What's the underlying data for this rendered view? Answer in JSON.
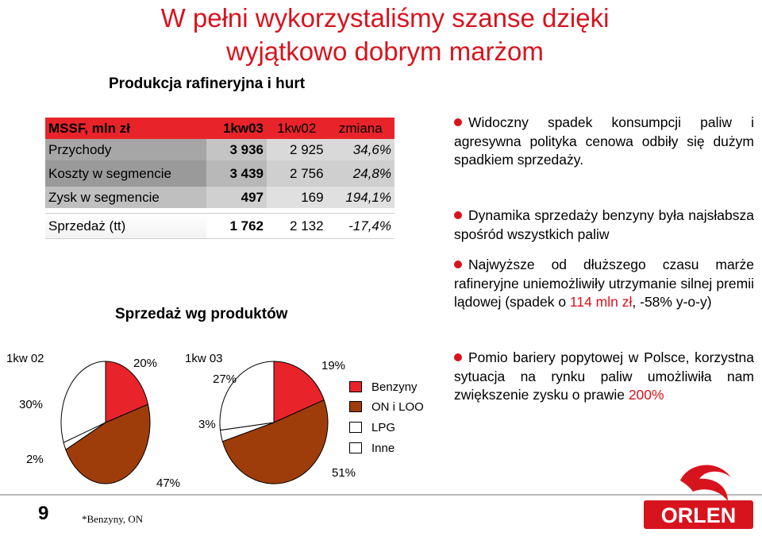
{
  "header": {
    "title": "W pełni wykorzystaliśmy szanse dzięki wyjątkowo dobrym marżom",
    "subtitle": "Produkcja rafineryjna i hurt"
  },
  "table": {
    "header": {
      "label": "MSSF, mln zł",
      "c1": "1kw03",
      "c2": "1kw02",
      "c3": "zmiana"
    },
    "rows": [
      {
        "label": "Przychody",
        "c1": "3 936",
        "c2": "2 925",
        "c3": "34,6%"
      },
      {
        "label": "Koszty w segmencie",
        "c1": "3 439",
        "c2": "2 756",
        "c3": "24,8%"
      },
      {
        "label": "Zysk w segmencie",
        "c1": "497",
        "c2": "169",
        "c3": "194,1%"
      },
      {
        "label": "Sprzedaż (tt)",
        "c1": "1 762",
        "c2": "2 132",
        "c3": "-17,4%"
      }
    ]
  },
  "sales": {
    "title": "Sprzedaż wg produktów",
    "legend": [
      {
        "label": "Benzyny",
        "color": "#e8242a"
      },
      {
        "label": "ON i LOO",
        "color": "#9e3d0a"
      },
      {
        "label": "LPG",
        "color": "#ffffff"
      },
      {
        "label": "Inne",
        "color": "#ffffff"
      }
    ]
  },
  "chart_data": [
    {
      "type": "pie",
      "title": "1kw 02",
      "categories": [
        "Benzyny",
        "ON i LOO",
        "LPG",
        "Inne"
      ],
      "values": [
        20,
        47,
        2,
        30
      ],
      "labels": [
        "20%",
        "47%",
        "2%",
        "30%"
      ]
    },
    {
      "type": "pie",
      "title": "1kw 03",
      "categories": [
        "Benzyny",
        "ON i LOO",
        "LPG",
        "Inne"
      ],
      "values": [
        19,
        51,
        3,
        27
      ],
      "labels": [
        "19%",
        "51%",
        "3%",
        "27%"
      ]
    }
  ],
  "bullets": [
    {
      "text": "Widoczny spadek konsumpcji paliw i agresywna polityka cenowa odbiły się dużym spadkiem sprzedaży."
    },
    {
      "text": "Dynamika sprzedaży benzyny była najsłabsza spośród wszystkich paliw"
    },
    {
      "pre": "Najwyższe od dłuższego czasu marże rafineryjne uniemożliwiły utrzymanie silnej premii lądowej (spadek o ",
      "highlight": "114 mln zł",
      "post": ", -58% y-o-y)"
    },
    {
      "pre": "Pomio bariery popytowej w Polsce, korzystna sytuacja na rynku paliw umożliwiła nam zwiększenie zysku o prawie ",
      "highlight": "200%",
      "post": ""
    }
  ],
  "footer": {
    "page_number": "9",
    "footnote": "*Benzyny, ON",
    "logo_text": "ORLEN",
    "brand_color": "#d7141e"
  }
}
